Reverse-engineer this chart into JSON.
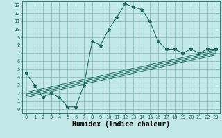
{
  "xlabel": "Humidex (Indice chaleur)",
  "ylabel": "",
  "bg_color": "#c2e8e8",
  "grid_color": "#8bbcbc",
  "line_color": "#1a6b5a",
  "xlim": [
    -0.5,
    23.5
  ],
  "ylim": [
    -0.5,
    13.5
  ],
  "xticks": [
    0,
    1,
    2,
    3,
    4,
    5,
    6,
    7,
    8,
    9,
    10,
    11,
    12,
    13,
    14,
    15,
    16,
    17,
    18,
    19,
    20,
    21,
    22,
    23
  ],
  "yticks": [
    0,
    1,
    2,
    3,
    4,
    5,
    6,
    7,
    8,
    9,
    10,
    11,
    12,
    13
  ],
  "main_x": [
    0,
    1,
    2,
    3,
    4,
    5,
    6,
    7,
    8,
    9,
    10,
    11,
    12,
    13,
    14,
    15,
    16,
    17,
    18,
    19,
    20,
    21,
    22,
    23
  ],
  "main_y": [
    4.5,
    3.0,
    1.5,
    2.0,
    1.5,
    0.3,
    0.3,
    3.0,
    8.5,
    8.0,
    10.0,
    11.5,
    13.2,
    12.8,
    12.5,
    11.0,
    8.5,
    7.5,
    7.5,
    7.0,
    7.5,
    7.0,
    7.5,
    7.5
  ],
  "reg_lines": [
    {
      "x0": 0,
      "y0": 1.5,
      "x1": 23,
      "y1": 6.8
    },
    {
      "x0": 0,
      "y0": 1.7,
      "x1": 23,
      "y1": 7.0
    },
    {
      "x0": 0,
      "y0": 1.9,
      "x1": 23,
      "y1": 7.2
    },
    {
      "x0": 0,
      "y0": 2.1,
      "x1": 23,
      "y1": 7.4
    }
  ],
  "xlabel_fontsize": 7,
  "tick_fontsize": 5,
  "figsize": [
    3.2,
    2.0
  ],
  "dpi": 100
}
